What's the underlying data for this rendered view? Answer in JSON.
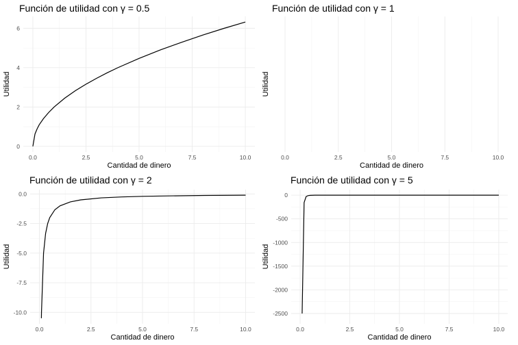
{
  "chart_data": [
    {
      "type": "line",
      "title": "Función de utilidad con γ = 0.5",
      "xlabel": "Cantidad de dinero",
      "ylabel": "Utilidad",
      "xlim": [
        0,
        10
      ],
      "ylim": [
        0,
        6.32
      ],
      "xticks": [
        0,
        2.5,
        5,
        7.5,
        10
      ],
      "xtick_labels": [
        "0.0",
        "2.5",
        "5.0",
        "7.5",
        "10.0"
      ],
      "yticks": [
        0,
        2,
        4,
        6
      ],
      "ytick_labels": [
        "0",
        "2",
        "4",
        "6"
      ],
      "grid": true,
      "series": [
        {
          "x": [
            0,
            0.1,
            0.2,
            0.3,
            0.5,
            0.75,
            1,
            1.5,
            2,
            2.5,
            3,
            3.5,
            4,
            5,
            6,
            7,
            8,
            9,
            10
          ],
          "y": [
            0,
            0.63,
            0.89,
            1.1,
            1.41,
            1.73,
            2.0,
            2.45,
            2.83,
            3.16,
            3.46,
            3.74,
            4.0,
            4.47,
            4.9,
            5.29,
            5.66,
            6.0,
            6.32
          ]
        }
      ]
    },
    {
      "type": "line",
      "title": "Función de utilidad con γ = 1",
      "xlabel": "Cantidad de dinero",
      "ylabel": "Utilidad",
      "xlim": [
        0,
        10
      ],
      "xticks": [
        0,
        2.5,
        5,
        7.5,
        10
      ],
      "xtick_labels": [
        "0.0",
        "2.5",
        "5.0",
        "7.5",
        "10.0"
      ],
      "yticks": [],
      "ytick_labels": [],
      "grid": true,
      "series": []
    },
    {
      "type": "line",
      "title": "Función de utilidad con γ = 2",
      "xlabel": "Cantidad de dinero",
      "ylabel": "Utilidad",
      "xlim": [
        0,
        10
      ],
      "ylim": [
        -10.5,
        -0.1
      ],
      "xticks": [
        0,
        2.5,
        5,
        7.5,
        10
      ],
      "xtick_labels": [
        "0.0",
        "2.5",
        "5.0",
        "7.5",
        "10.0"
      ],
      "yticks": [
        0,
        -2.5,
        -5,
        -7.5,
        -10
      ],
      "ytick_labels": [
        "0.0",
        "-2.5",
        "-5.0",
        "-7.5",
        "-10.0"
      ],
      "grid": true,
      "series": [
        {
          "x": [
            0.095,
            0.1,
            0.2,
            0.3,
            0.4,
            0.5,
            0.75,
            1,
            1.5,
            2,
            3,
            4,
            5,
            6,
            8,
            10
          ],
          "y": [
            -10.5,
            -10,
            -5,
            -3.33,
            -2.5,
            -2,
            -1.33,
            -1,
            -0.67,
            -0.5,
            -0.33,
            -0.25,
            -0.2,
            -0.17,
            -0.125,
            -0.1
          ]
        }
      ]
    },
    {
      "type": "line",
      "title": "Función de utilidad con γ = 5",
      "xlabel": "Cantidad de dinero",
      "ylabel": "Utilidad",
      "xlim": [
        0,
        10
      ],
      "ylim": [
        -2600,
        0
      ],
      "xticks": [
        0,
        2.5,
        5,
        7.5,
        10
      ],
      "xtick_labels": [
        "0.0",
        "2.5",
        "5.0",
        "7.5",
        "10.0"
      ],
      "yticks": [
        0,
        -500,
        -1000,
        -1500,
        -2000,
        -2500
      ],
      "ytick_labels": [
        "0",
        "-500",
        "-1000",
        "-1500",
        "-2000",
        "-2500"
      ],
      "grid": true,
      "series": [
        {
          "x": [
            0.1,
            0.2,
            0.3,
            0.4,
            0.5,
            0.75,
            1,
            2,
            4,
            10
          ],
          "y": [
            -2500,
            -156.25,
            -30.86,
            -9.77,
            -4,
            -0.79,
            -0.25,
            -0.016,
            -0.001,
            0
          ]
        }
      ]
    }
  ]
}
